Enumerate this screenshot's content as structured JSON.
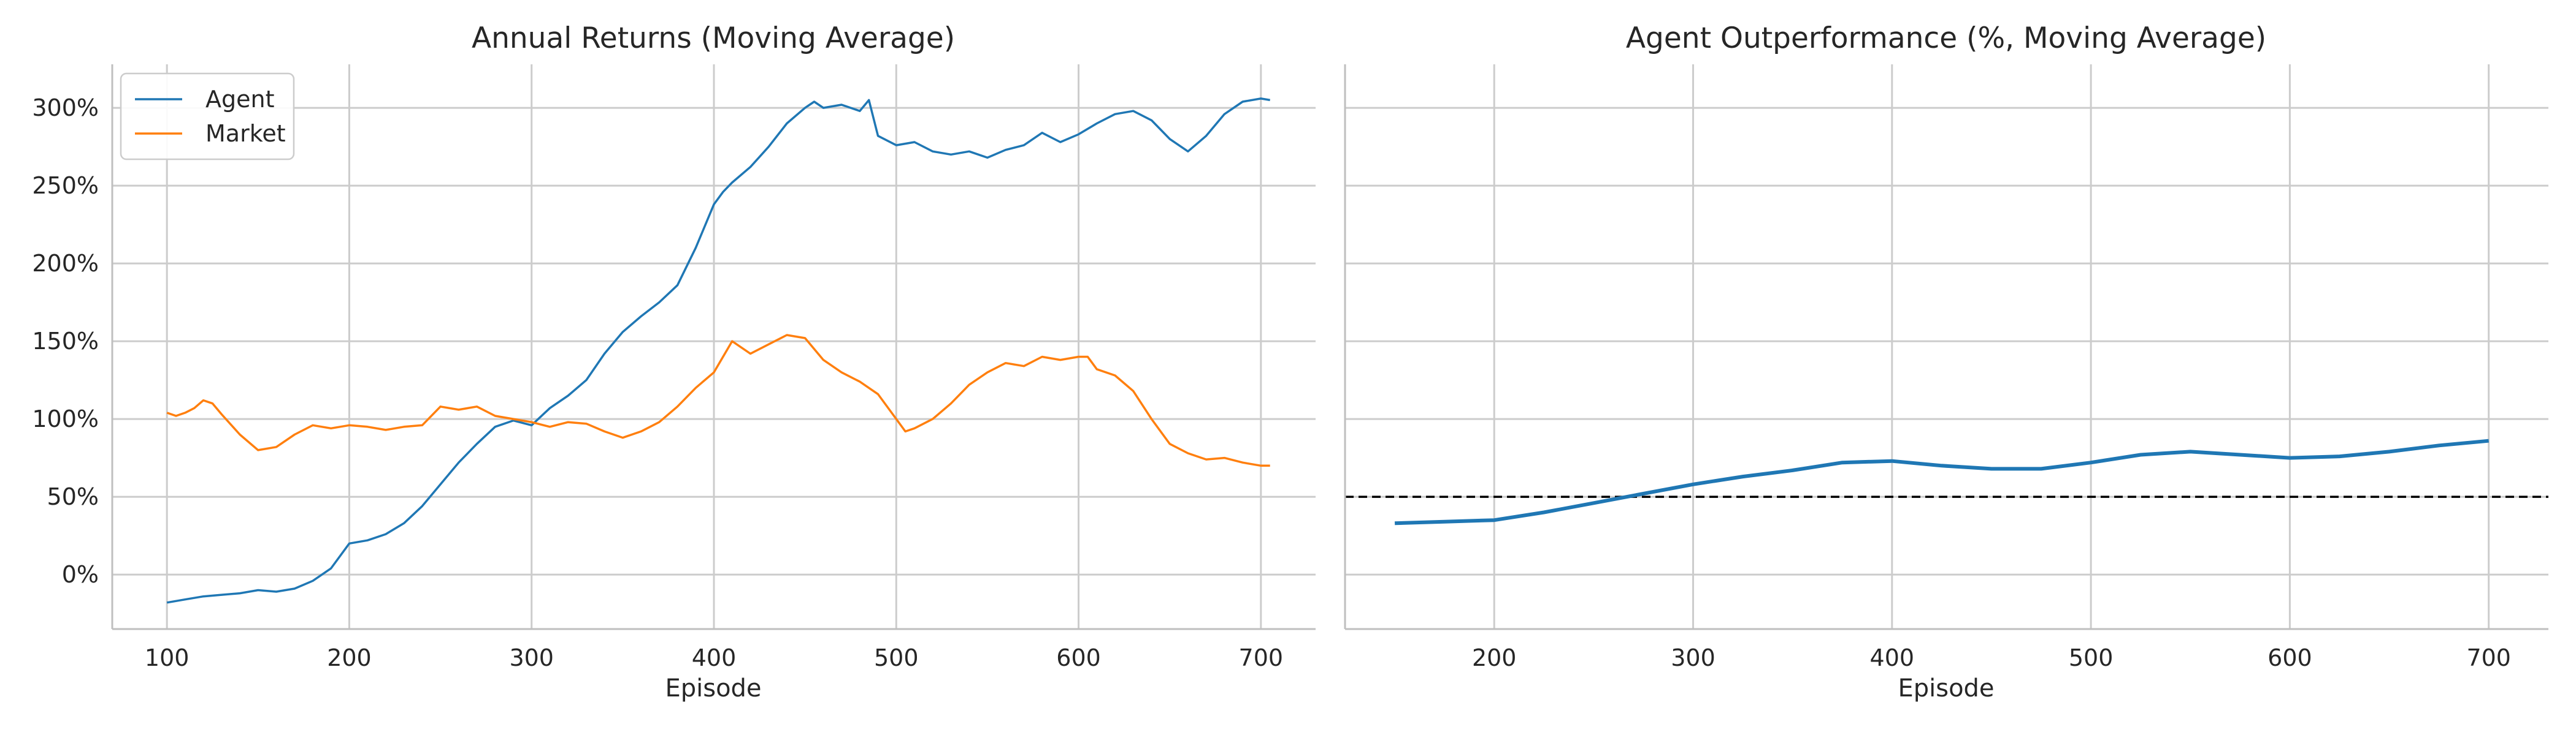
{
  "figure": {
    "colors": {
      "agent": "#1f77b4",
      "market": "#ff7f0e",
      "grid": "#cccccc",
      "axis": "#bfbfbf",
      "reference": "#000000"
    }
  },
  "chart_data": [
    {
      "type": "line",
      "title": "Annual Returns (Moving Average)",
      "xlabel": "Episode",
      "ylabel": "",
      "xlim": [
        70,
        730
      ],
      "ylim": [
        -35,
        328
      ],
      "x_ticks": [
        "100",
        "200",
        "300",
        "400",
        "500",
        "600",
        "700"
      ],
      "y_ticks": [
        "0%",
        "50%",
        "100%",
        "150%",
        "200%",
        "250%",
        "300%"
      ],
      "grid": true,
      "legend": "top-left",
      "series": [
        {
          "name": "Agent",
          "color": "#1f77b4",
          "x": [
            100,
            110,
            120,
            130,
            140,
            150,
            160,
            170,
            180,
            190,
            200,
            210,
            220,
            230,
            240,
            250,
            260,
            270,
            280,
            290,
            300,
            310,
            320,
            330,
            340,
            350,
            360,
            370,
            380,
            390,
            400,
            405,
            410,
            420,
            430,
            440,
            450,
            455,
            460,
            470,
            480,
            485,
            490,
            500,
            510,
            520,
            530,
            540,
            550,
            560,
            570,
            580,
            590,
            600,
            610,
            620,
            630,
            640,
            650,
            660,
            670,
            680,
            690,
            700,
            705
          ],
          "y": [
            -18,
            -16,
            -14,
            -13,
            -12,
            -10,
            -11,
            -9,
            -4,
            4,
            20,
            22,
            26,
            33,
            44,
            58,
            72,
            84,
            95,
            99,
            96,
            107,
            115,
            125,
            142,
            156,
            166,
            175,
            186,
            210,
            238,
            246,
            252,
            262,
            275,
            290,
            300,
            304,
            300,
            302,
            298,
            305,
            282,
            276,
            278,
            272,
            270,
            272,
            268,
            273,
            276,
            284,
            278,
            283,
            290,
            296,
            298,
            292,
            280,
            272,
            282,
            296,
            304,
            306,
            305
          ]
        },
        {
          "name": "Market",
          "color": "#ff7f0e",
          "x": [
            100,
            105,
            110,
            115,
            120,
            125,
            130,
            140,
            150,
            160,
            170,
            180,
            190,
            200,
            210,
            220,
            230,
            240,
            250,
            260,
            270,
            280,
            290,
            300,
            310,
            320,
            330,
            340,
            350,
            360,
            370,
            380,
            390,
            400,
            410,
            420,
            430,
            440,
            450,
            460,
            470,
            480,
            490,
            500,
            505,
            510,
            520,
            530,
            540,
            550,
            560,
            570,
            580,
            590,
            600,
            605,
            610,
            620,
            630,
            640,
            650,
            660,
            670,
            680,
            690,
            700,
            705
          ],
          "y": [
            104,
            102,
            104,
            107,
            112,
            110,
            103,
            90,
            80,
            82,
            90,
            96,
            94,
            96,
            95,
            93,
            95,
            96,
            108,
            106,
            108,
            102,
            100,
            98,
            95,
            98,
            97,
            92,
            88,
            92,
            98,
            108,
            120,
            130,
            150,
            142,
            148,
            154,
            152,
            138,
            130,
            124,
            116,
            100,
            92,
            94,
            100,
            110,
            122,
            130,
            136,
            134,
            140,
            138,
            140,
            140,
            132,
            128,
            118,
            100,
            84,
            78,
            74,
            75,
            72,
            70,
            70
          ]
        }
      ]
    },
    {
      "type": "line",
      "title": "Agent Outperformance (%, Moving Average)",
      "xlabel": "Episode",
      "ylabel": "",
      "xlim": [
        125,
        730
      ],
      "ylim": [
        -35,
        328
      ],
      "x_ticks": [
        "200",
        "300",
        "400",
        "500",
        "600",
        "700"
      ],
      "grid": true,
      "reference_line": {
        "y": 50,
        "style": "dashed"
      },
      "series": [
        {
          "color": "#1f77b4",
          "x": [
            150,
            175,
            200,
            225,
            250,
            275,
            300,
            325,
            350,
            375,
            400,
            425,
            450,
            475,
            500,
            525,
            550,
            575,
            600,
            625,
            650,
            675,
            700
          ],
          "y": [
            33,
            34,
            35,
            40,
            46,
            52,
            58,
            63,
            67,
            72,
            73,
            70,
            68,
            68,
            72,
            77,
            79,
            77,
            75,
            76,
            79,
            83,
            86
          ]
        }
      ]
    }
  ]
}
